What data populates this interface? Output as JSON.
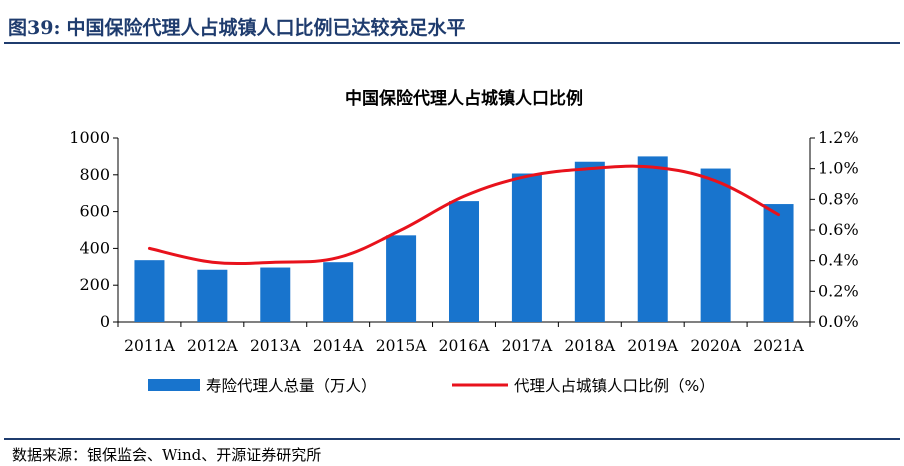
{
  "figure": {
    "number": "图39:",
    "title": "中国保险代理人占城镇人口比例已达较充足水平",
    "source": "数据来源：银保监会、Wind、开源证券研究所"
  },
  "colors": {
    "bar": "#1874cd",
    "line": "#e8121c",
    "header": "#1f3c6e"
  },
  "chart_data": {
    "type": "bar+line",
    "title": "中国保险代理人占城镇人口比例",
    "categories": [
      "2011A",
      "2012A",
      "2013A",
      "2014A",
      "2015A",
      "2016A",
      "2017A",
      "2018A",
      "2019A",
      "2020A",
      "2021A"
    ],
    "series": [
      {
        "name": "寿险代理人总量（万人）",
        "type": "bar",
        "axis": "left",
        "values": [
          336,
          284,
          296,
          325,
          471,
          657,
          807,
          871,
          900,
          834,
          641
        ]
      },
      {
        "name": "代理人占城镇人口比例（%）",
        "type": "line",
        "axis": "right",
        "values": [
          0.48,
          0.39,
          0.39,
          0.42,
          0.6,
          0.82,
          0.95,
          1.0,
          1.01,
          0.92,
          0.7
        ]
      }
    ],
    "y_left": {
      "min": 0,
      "max": 1000,
      "ticks": [
        "0",
        "200",
        "400",
        "600",
        "800",
        "1000"
      ]
    },
    "y_right": {
      "min": 0,
      "max": 1.2,
      "ticks": [
        "0.0%",
        "0.2%",
        "0.4%",
        "0.6%",
        "0.8%",
        "1.0%",
        "1.2%"
      ]
    },
    "legend_position": "bottom",
    "grid": false
  }
}
